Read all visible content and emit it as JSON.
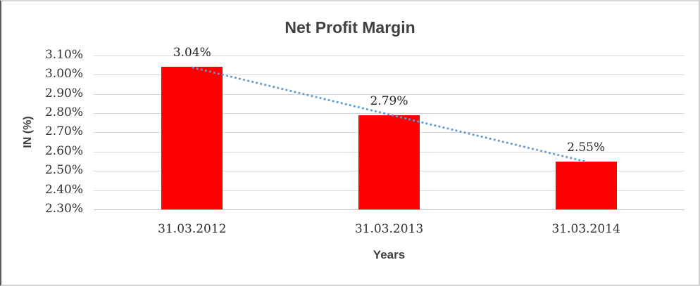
{
  "chart_data": {
    "type": "bar",
    "title": "Net Profit Margin",
    "xlabel": "Years",
    "ylabel": "IN (%)",
    "categories": [
      "31.03.2012",
      "31.03.2013",
      "31.03.2014"
    ],
    "values": [
      3.04,
      2.79,
      2.55
    ],
    "value_labels": [
      "3.04%",
      "2.79%",
      "2.55%"
    ],
    "unit": "%",
    "ylim": [
      2.3,
      3.1
    ],
    "ytick_step": 0.1,
    "ytick_labels": [
      "3.10%",
      "3.00%",
      "2.90%",
      "2.80%",
      "2.70%",
      "2.60%",
      "2.50%",
      "2.40%",
      "2.30%"
    ],
    "grid": true,
    "legend": false,
    "trendline": {
      "type": "linear",
      "style": "dotted",
      "color": "#5B9BD5"
    },
    "colors": {
      "bar": "#FF0000",
      "gridline": "#D9D9D9",
      "axis_line": "#BFBFBF",
      "text": "#303030",
      "title": "#404040"
    }
  }
}
